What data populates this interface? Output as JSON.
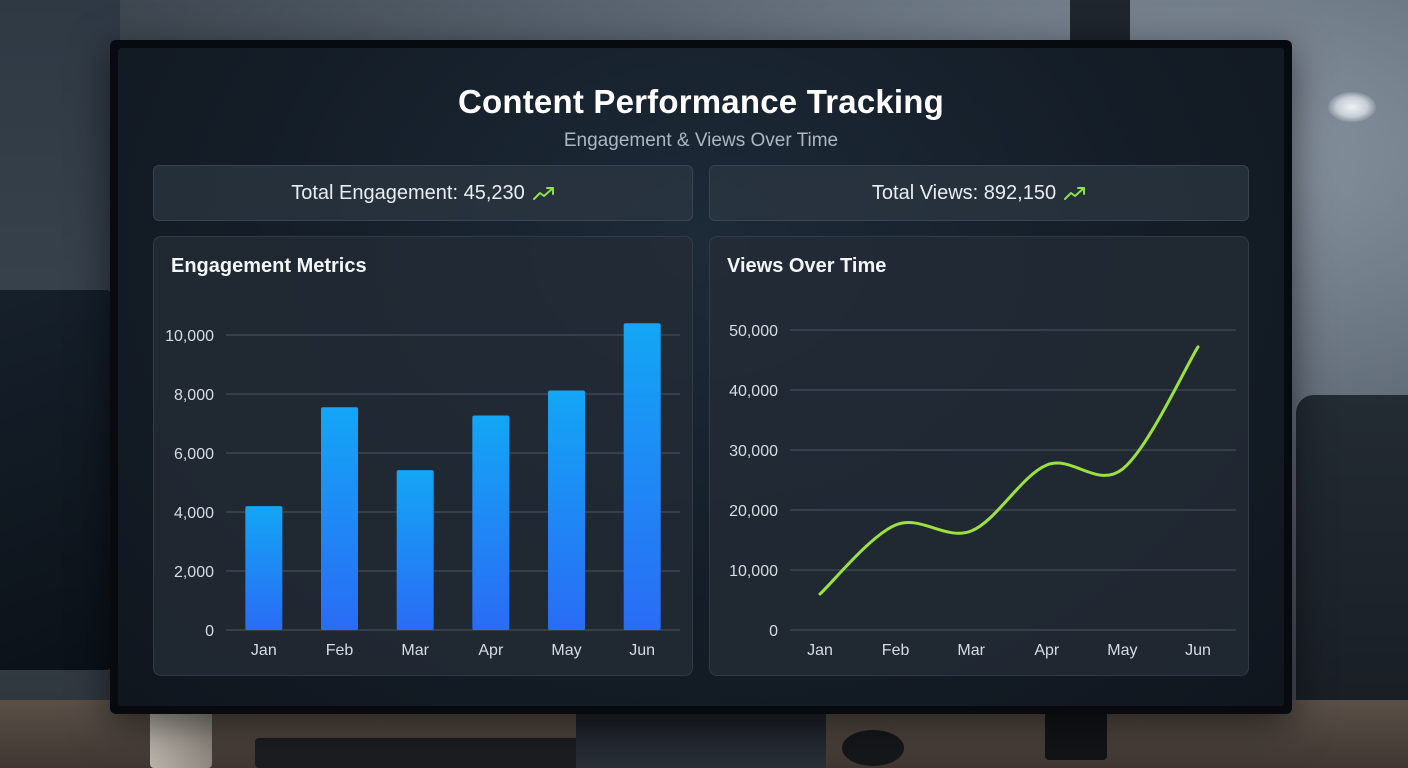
{
  "dashboard": {
    "title": "Content Performance Tracking",
    "subtitle": "Engagement & Views Over Time"
  },
  "kpis": {
    "engagement_label": "Total Engagement: 45,230",
    "views_label": "Total Views: 892,150",
    "trend_icon": "trend-up-icon",
    "trend_color": "#8be04e"
  },
  "colors": {
    "bar_top": "#13a6f5",
    "bar_bottom": "#2a6cf5",
    "line": "#9be23f",
    "grid": "#4a5663",
    "axis_text": "#d6dce2"
  },
  "chart_data": [
    {
      "type": "bar",
      "title": "Engagement Metrics",
      "categories": [
        "Jan",
        "Feb",
        "Mar",
        "Apr",
        "May",
        "Jun"
      ],
      "values": [
        4200,
        7550,
        5420,
        7270,
        8120,
        10400
      ],
      "ylim": [
        0,
        10000
      ],
      "yticks": [
        0,
        2000,
        4000,
        6000,
        8000,
        10000
      ],
      "ytick_labels": [
        "0",
        "2,000",
        "4,000",
        "6,000",
        "8,000",
        "10,000"
      ],
      "grid": true
    },
    {
      "type": "line",
      "title": "Views Over Time",
      "x": [
        "Jan",
        "Feb",
        "Mar",
        "Apr",
        "May",
        "Jun"
      ],
      "values": [
        6000,
        17500,
        16500,
        27500,
        26800,
        47200
      ],
      "ylim": [
        0,
        50000
      ],
      "yticks": [
        0,
        10000,
        20000,
        30000,
        40000,
        50000
      ],
      "ytick_labels": [
        "0",
        "10,000",
        "20,000",
        "30,000",
        "40,000",
        "50,000"
      ],
      "grid": true
    }
  ]
}
